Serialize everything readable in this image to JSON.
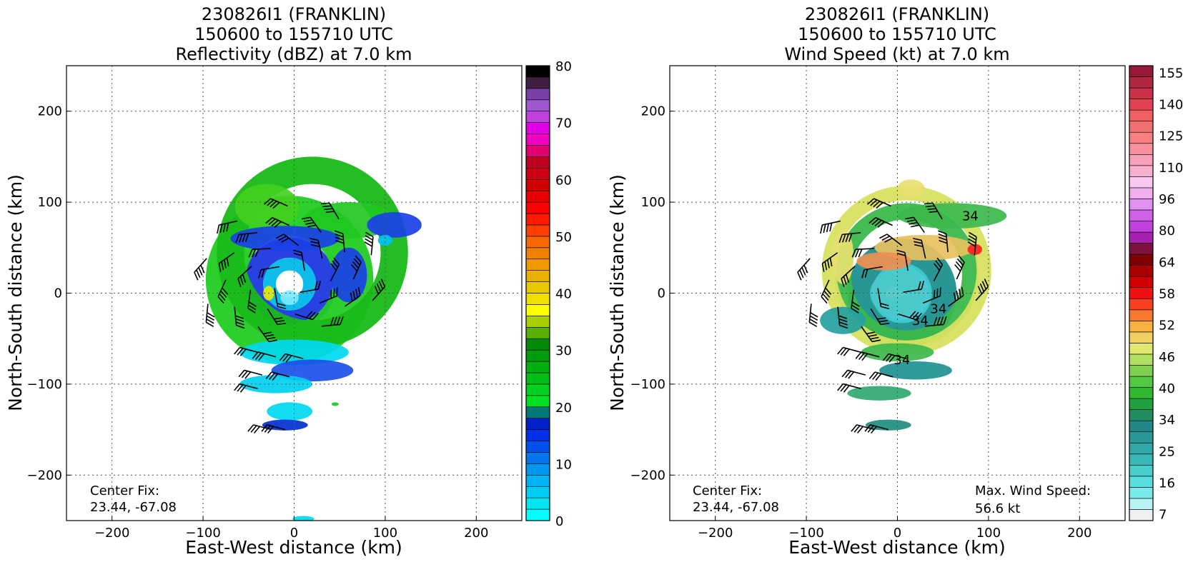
{
  "chart_data": [
    {
      "type": "heatmap",
      "title_lines": [
        "230826I1 (FRANKLIN)",
        "150600 to 155710 UTC",
        "Reflectivity (dBZ) at 7.0 km"
      ],
      "xlabel": "East-West distance (km)",
      "ylabel": "North-South distance (km)",
      "xlim": [
        -250,
        250
      ],
      "ylim": [
        -250,
        250
      ],
      "xticks": [
        -200,
        -100,
        0,
        100,
        200
      ],
      "yticks": [
        -200,
        -100,
        0,
        100,
        200
      ],
      "grid": true,
      "center_fix_label": "Center Fix:",
      "center_fix_value": "23.44, -67.08",
      "colorbar": {
        "min": 0,
        "max": 80,
        "ticks": [
          0,
          10,
          20,
          30,
          40,
          50,
          60,
          70,
          80
        ],
        "colors": [
          "#00ffff",
          "#00e5f0",
          "#00cdf4",
          "#00b4f4",
          "#0097f0",
          "#0075ee",
          "#0050f0",
          "#0030e8",
          "#0020c8",
          "#007878",
          "#00e020",
          "#00d020",
          "#00c018",
          "#00b010",
          "#009c10",
          "#008a08",
          "#58b000",
          "#a8d000",
          "#ffff00",
          "#f0e000",
          "#e8c800",
          "#e8b000",
          "#f09800",
          "#f08000",
          "#f86800",
          "#ff4000",
          "#ff1a00",
          "#ff0000",
          "#e80000",
          "#d00000",
          "#cc0010",
          "#c00020",
          "#e00070",
          "#f000c0",
          "#e000e8",
          "#c040e0",
          "#a058d0",
          "#7840a8",
          "#402040",
          "#000000"
        ]
      },
      "rings": [
        {
          "cx": -5,
          "cy": 10,
          "r": 40,
          "w": 22,
          "color": "#1c38e0"
        },
        {
          "cx": -5,
          "cy": 10,
          "r": 22,
          "w": 14,
          "color": "#00b8e8"
        },
        {
          "cx": -5,
          "cy": 15,
          "r": 70,
          "w": 44,
          "color": "#22cc22"
        },
        {
          "cx": 20,
          "cy": 45,
          "r": 90,
          "w": 30,
          "color": "#18bb18"
        }
      ],
      "blobs": [
        {
          "x": -30,
          "y": 95,
          "rx": 35,
          "ry": 25,
          "color": "#44d020"
        },
        {
          "x": 60,
          "y": 80,
          "rx": 50,
          "ry": 20,
          "color": "#22c822"
        },
        {
          "x": 110,
          "y": 75,
          "rx": 30,
          "ry": 14,
          "color": "#1a40e8"
        },
        {
          "x": -10,
          "y": 60,
          "rx": 60,
          "ry": 14,
          "color": "#1a40e8"
        },
        {
          "x": 60,
          "y": 20,
          "rx": 20,
          "ry": 30,
          "color": "#1a40e8"
        },
        {
          "x": -5,
          "y": -5,
          "rx": 10,
          "ry": 8,
          "color": "#7fe8ff"
        },
        {
          "x": -28,
          "y": 0,
          "rx": 6,
          "ry": 8,
          "color": "#e8e800"
        },
        {
          "x": 0,
          "y": -65,
          "rx": 60,
          "ry": 14,
          "color": "#00d8f0"
        },
        {
          "x": 20,
          "y": -85,
          "rx": 45,
          "ry": 12,
          "color": "#1a50e8"
        },
        {
          "x": -20,
          "y": -100,
          "rx": 40,
          "ry": 10,
          "color": "#00d0f0"
        },
        {
          "x": -5,
          "y": -130,
          "rx": 25,
          "ry": 10,
          "color": "#00d8f0"
        },
        {
          "x": -10,
          "y": -145,
          "rx": 25,
          "ry": 6,
          "color": "#0030d0"
        },
        {
          "x": 10,
          "y": -248,
          "rx": 12,
          "ry": 3,
          "color": "#00d8f0"
        },
        {
          "x": 100,
          "y": 58,
          "rx": 8,
          "ry": 6,
          "color": "#00c0f0"
        },
        {
          "x": 45,
          "y": -122,
          "rx": 4,
          "ry": 2,
          "color": "#22c822"
        }
      ]
    },
    {
      "type": "heatmap",
      "title_lines": [
        "230826I1 (FRANKLIN)",
        "150600 to 155710 UTC",
        "Wind Speed (kt) at 7.0 km"
      ],
      "xlabel": "East-West distance (km)",
      "ylabel": "North-South distance (km)",
      "xlim": [
        -250,
        250
      ],
      "ylim": [
        -250,
        250
      ],
      "xticks": [
        -200,
        -100,
        0,
        100,
        200
      ],
      "yticks": [
        -200,
        -100,
        0,
        100,
        200
      ],
      "grid": true,
      "center_fix_label": "Center Fix:",
      "center_fix_value": "23.44, -67.08",
      "max_wind_label": "Max. Wind Speed:",
      "max_wind_value": "56.6 kt",
      "contour_labels": [
        {
          "text": "34",
          "x": 25,
          "y": -35
        },
        {
          "text": "34",
          "x": 45,
          "y": -22
        },
        {
          "text": "34",
          "x": 5,
          "y": -78
        },
        {
          "text": "34",
          "x": 80,
          "y": 80
        }
      ],
      "colorbar": {
        "ticks": [
          7,
          16,
          25,
          34,
          40,
          46,
          52,
          58,
          64,
          80,
          96,
          110,
          125,
          140,
          155
        ],
        "colors": [
          "#f0f0f0",
          "#b8f4f4",
          "#78eaea",
          "#58dede",
          "#48cccc",
          "#38b8b8",
          "#30a8a8",
          "#289898",
          "#208888",
          "#208c60",
          "#20a040",
          "#30b830",
          "#50c840",
          "#80d050",
          "#b0e060",
          "#e0e870",
          "#f0d060",
          "#f8b040",
          "#f87830",
          "#f84020",
          "#f01010",
          "#d00000",
          "#a80000",
          "#800000",
          "#801040",
          "#a820b0",
          "#c040e0",
          "#d060e8",
          "#e090f0",
          "#f0b0f0",
          "#f8c8f0",
          "#f8b0d0",
          "#f8a0b8",
          "#f890a0",
          "#f88080",
          "#f07070",
          "#f06060",
          "#e04050",
          "#c83048",
          "#b02840",
          "#981838"
        ]
      },
      "rings": [
        {
          "cx": 5,
          "cy": 0,
          "r": 45,
          "w": 30,
          "color": "#1e9090"
        },
        {
          "cx": 5,
          "cy": 0,
          "r": 18,
          "w": 30,
          "color": "#3ec8d0"
        },
        {
          "cx": 10,
          "cy": 20,
          "r": 70,
          "w": 18,
          "color": "#3cb84c"
        },
        {
          "cx": 10,
          "cy": 25,
          "r": 85,
          "w": 16,
          "color": "#d8e060"
        }
      ],
      "blobs": [
        {
          "x": -5,
          "y": 0,
          "rx": 8,
          "ry": 8,
          "color": "#c8f4f4"
        },
        {
          "x": 0,
          "y": 0,
          "rx": 30,
          "ry": 25,
          "color": "#4cc8c8"
        },
        {
          "x": -60,
          "y": -30,
          "rx": 25,
          "ry": 15,
          "color": "#24a0a0"
        },
        {
          "x": 30,
          "y": 50,
          "rx": 55,
          "ry": 14,
          "color": "#e8c060"
        },
        {
          "x": -15,
          "y": 35,
          "rx": 30,
          "ry": 10,
          "color": "#f09050"
        },
        {
          "x": 60,
          "y": 85,
          "rx": 60,
          "ry": 14,
          "color": "#3cb84c"
        },
        {
          "x": 15,
          "y": 115,
          "rx": 15,
          "ry": 10,
          "color": "#e8e070"
        },
        {
          "x": 85,
          "y": 48,
          "rx": 8,
          "ry": 6,
          "color": "#ff2020"
        },
        {
          "x": 0,
          "y": -65,
          "rx": 40,
          "ry": 10,
          "color": "#3cb84c"
        },
        {
          "x": 20,
          "y": -85,
          "rx": 40,
          "ry": 10,
          "color": "#1e9090"
        },
        {
          "x": -20,
          "y": -110,
          "rx": 35,
          "ry": 8,
          "color": "#30a870"
        },
        {
          "x": -10,
          "y": -145,
          "rx": 25,
          "ry": 6,
          "color": "#208c80"
        },
        {
          "x": -60,
          "y": 40,
          "rx": 12,
          "ry": 30,
          "color": "#e8e070"
        }
      ]
    }
  ]
}
